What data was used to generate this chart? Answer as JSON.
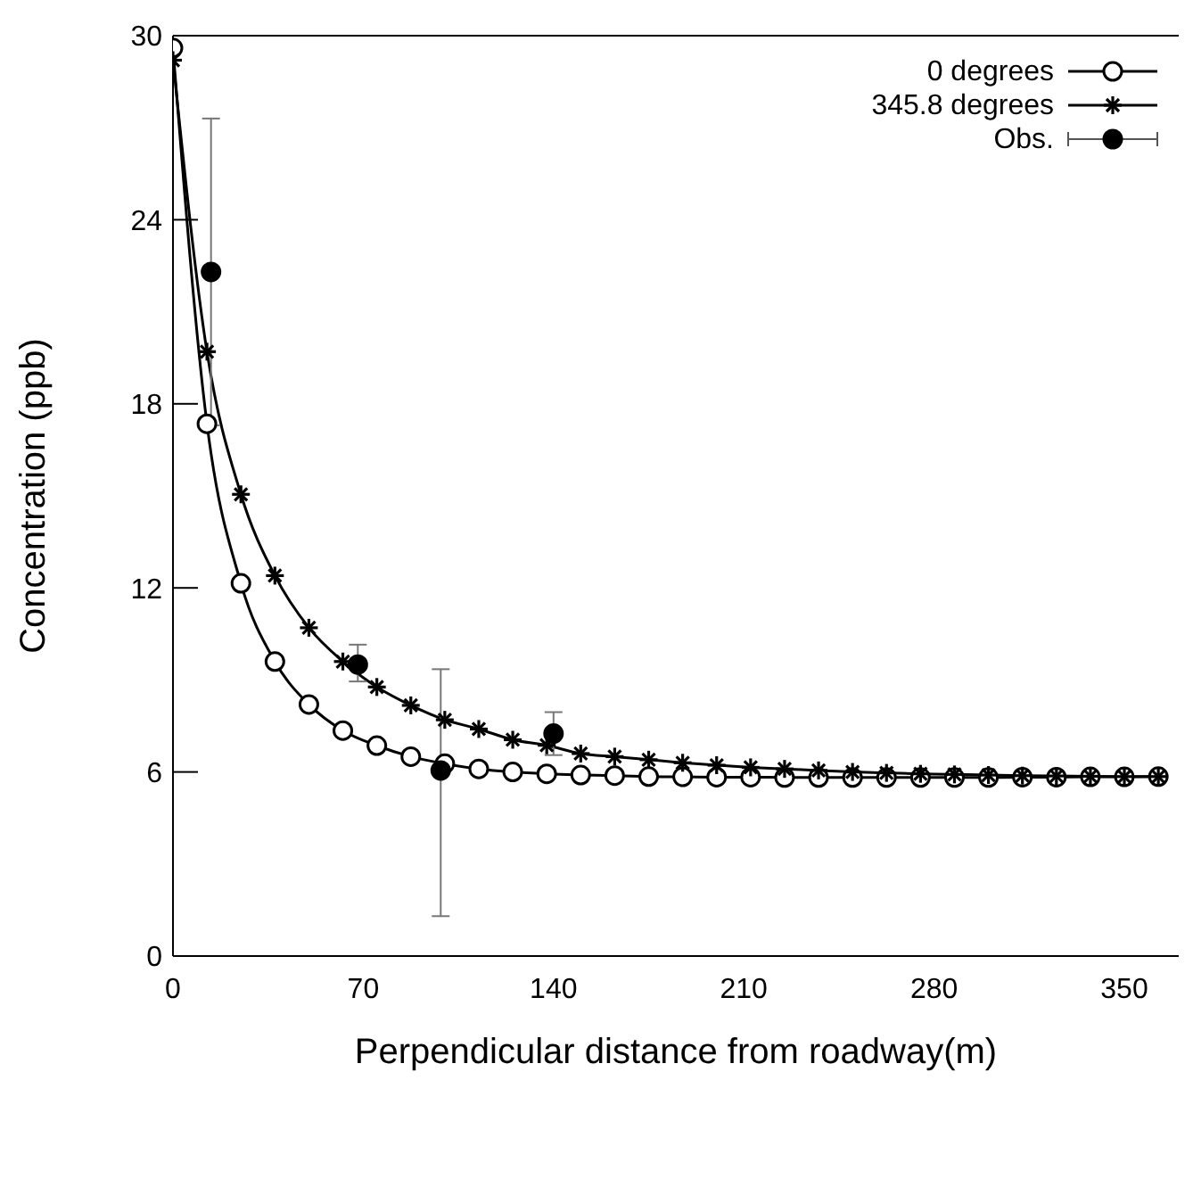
{
  "chart_data": {
    "type": "line",
    "xlabel": "Perpendicular distance from roadway(m)",
    "ylabel": "Concentration (ppb)",
    "xlim": [
      0,
      370
    ],
    "xticks": [
      0,
      70,
      140,
      210,
      280,
      350
    ],
    "ylim": [
      0,
      30
    ],
    "yticks": [
      0,
      6,
      12,
      18,
      24,
      30
    ],
    "legend": "top right",
    "line_style": "solid",
    "series": [
      {
        "name": "0 degrees",
        "marker": "circle",
        "color": "#000000",
        "x": [
          0,
          12.5,
          25,
          37.5,
          50,
          62.5,
          75,
          87.5,
          100,
          112.5,
          125,
          137.5,
          150,
          162.5,
          175,
          187.5,
          200,
          212.5,
          225,
          237.5,
          250,
          262.5,
          275,
          287.5,
          300,
          312.5,
          325,
          337.5,
          350,
          362.5
        ],
        "values": [
          29.6,
          17.35,
          12.15,
          9.6,
          8.2,
          7.35,
          6.86,
          6.5,
          6.27,
          6.1,
          6.0,
          5.94,
          5.9,
          5.88,
          5.85,
          5.84,
          5.83,
          5.83,
          5.82,
          5.82,
          5.82,
          5.82,
          5.82,
          5.82,
          5.82,
          5.83,
          5.83,
          5.84,
          5.84,
          5.85
        ]
      },
      {
        "name": "345.8 degrees",
        "marker": "cross",
        "color": "#000000",
        "x": [
          0,
          12.5,
          25,
          37.5,
          50,
          62.5,
          75,
          87.5,
          100,
          112.5,
          125,
          137.5,
          150,
          162.5,
          175,
          187.5,
          200,
          212.5,
          225,
          237.5,
          250,
          262.5,
          275,
          287.5,
          300,
          312.5,
          325,
          337.5,
          350,
          362.5
        ],
        "values": [
          29.2,
          19.7,
          15.05,
          12.4,
          10.7,
          9.6,
          8.77,
          8.17,
          7.7,
          7.4,
          7.05,
          6.87,
          6.6,
          6.5,
          6.4,
          6.3,
          6.22,
          6.15,
          6.1,
          6.05,
          6.0,
          5.97,
          5.94,
          5.92,
          5.9,
          5.88,
          5.87,
          5.86,
          5.85,
          5.85
        ]
      },
      {
        "name": "Obs.",
        "type": "scatter",
        "marker": "circle",
        "color": "#000000",
        "x": [
          14,
          68,
          98.5,
          140
        ],
        "values": [
          22.3,
          9.5,
          6.05,
          7.25
        ],
        "errors": [
          5,
          [
            8.95,
            10.15
          ],
          [
            1.3,
            9.35
          ],
          0.7
        ]
      }
    ]
  }
}
